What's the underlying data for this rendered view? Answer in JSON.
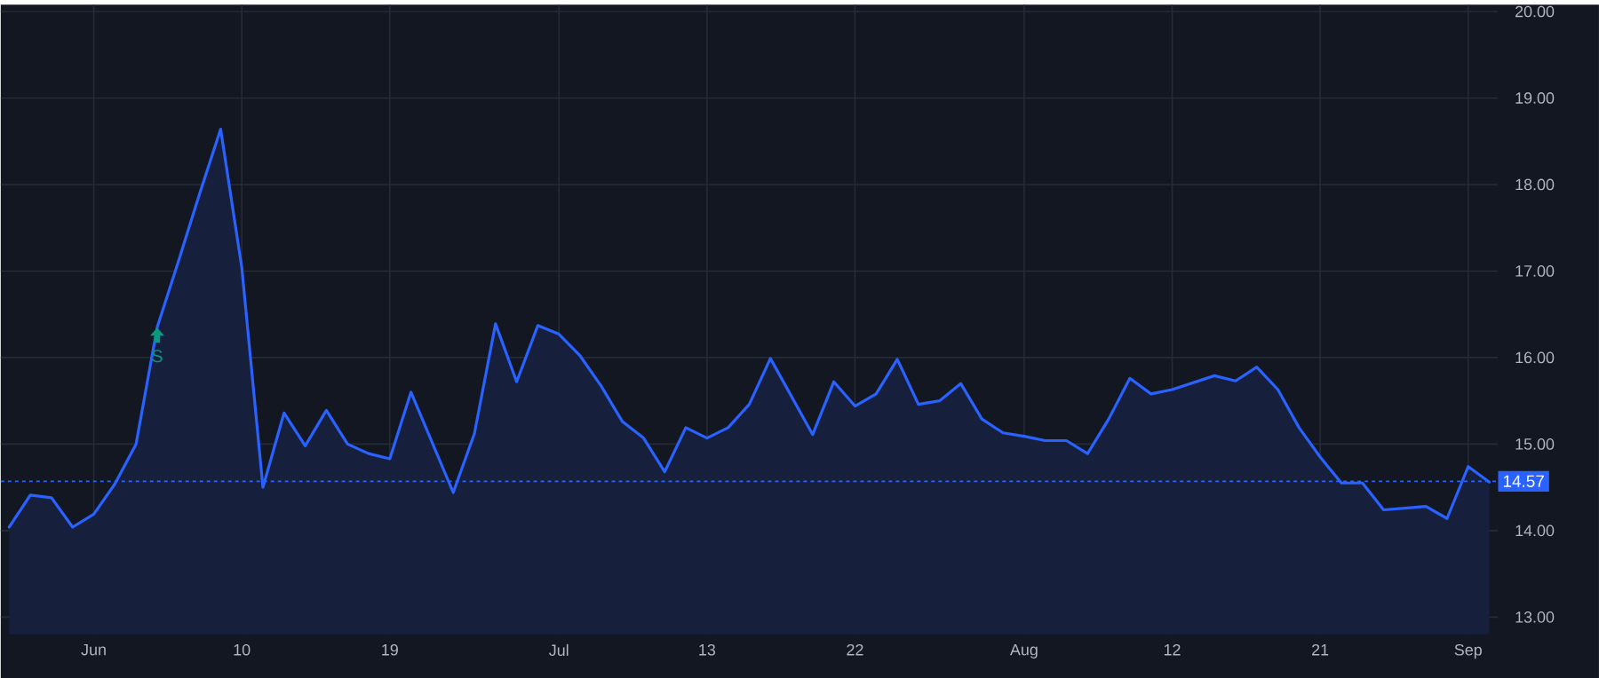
{
  "chart_data": {
    "type": "area",
    "categories": [
      null,
      null,
      null,
      null,
      "Jun",
      null,
      null,
      null,
      null,
      null,
      null,
      "10",
      null,
      null,
      null,
      null,
      null,
      null,
      "19",
      null,
      null,
      null,
      null,
      null,
      null,
      null,
      "Jul",
      null,
      null,
      null,
      null,
      null,
      null,
      "13",
      null,
      null,
      null,
      null,
      null,
      null,
      "22",
      null,
      null,
      null,
      null,
      null,
      null,
      null,
      "Aug",
      null,
      null,
      null,
      null,
      null,
      null,
      "12",
      null,
      null,
      null,
      null,
      null,
      null,
      "21",
      null,
      null,
      null,
      null,
      null,
      null,
      "Sep",
      null
    ],
    "series": [
      {
        "color": "#2962ff",
        "values": [
          14.04,
          14.41,
          14.38,
          14.04,
          14.19,
          14.54,
          15.0,
          16.35,
          17.11,
          17.89,
          18.64,
          17.04,
          14.5,
          15.36,
          14.98,
          15.39,
          15.0,
          14.89,
          14.83,
          15.6,
          15.02,
          14.44,
          15.12,
          16.39,
          15.72,
          16.37,
          16.27,
          16.02,
          15.67,
          15.26,
          15.07,
          14.68,
          15.19,
          15.07,
          15.19,
          15.46,
          15.99,
          15.55,
          15.11,
          15.72,
          15.44,
          15.58,
          15.98,
          15.46,
          15.5,
          15.7,
          15.29,
          15.13,
          15.09,
          15.04,
          15.04,
          14.89,
          15.29,
          15.76,
          15.58,
          15.63,
          15.71,
          15.79,
          15.73,
          15.89,
          15.63,
          15.19,
          14.85,
          14.55,
          14.55,
          14.24,
          14.26,
          14.28,
          14.14,
          14.74,
          14.56
        ]
      }
    ],
    "ylim": [
      12.8,
      20.08
    ],
    "yticks": [
      {
        "value": 13,
        "label": "13.00"
      },
      {
        "value": 14,
        "label": "14.00"
      },
      {
        "value": 15,
        "label": "15.00"
      },
      {
        "value": 16,
        "label": "16.00"
      },
      {
        "value": 17,
        "label": "17.00"
      },
      {
        "value": 18,
        "label": "18.00"
      },
      {
        "value": 19,
        "label": "19.00"
      },
      {
        "value": 20,
        "label": "20.00"
      }
    ],
    "grid": true,
    "ref_lines": [
      {
        "axis": "y",
        "value": 14.57,
        "label": "14.57",
        "color": "#2962ff",
        "line_style": "dotted"
      }
    ],
    "annotations": [
      {
        "text": "S",
        "y": 16.35
      }
    ]
  }
}
